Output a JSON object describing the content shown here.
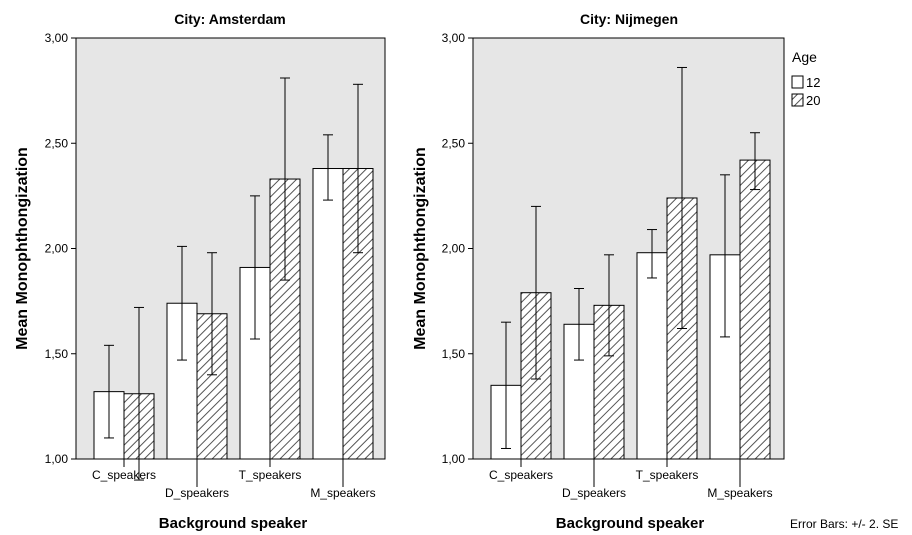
{
  "colors": {
    "plot_bg": "#e6e6e6",
    "bar_fill": "#ffffff",
    "hatch": "#555555",
    "line": "#000000"
  },
  "legend": {
    "title": "Age",
    "items": [
      {
        "label": "12",
        "pattern": "plain"
      },
      {
        "label": "20",
        "pattern": "hatched"
      }
    ],
    "placement": "right of second panel"
  },
  "footnote": "Error Bars: +/- 2. SE",
  "chart_data": [
    {
      "type": "bar",
      "title": "City: Amsterdam",
      "xlabel": "Background speaker",
      "ylabel": "Mean Monophthongization",
      "ylim": [
        1.0,
        3.0
      ],
      "yticks": [
        "1,00",
        "1,50",
        "2,00",
        "2,50",
        "3,00"
      ],
      "ytick_values": [
        1.0,
        1.5,
        2.0,
        2.5,
        3.0
      ],
      "categories": [
        "C_speakers",
        "D_speakers",
        "T_speakers",
        "M_speakers"
      ],
      "series": [
        {
          "name": "12",
          "values": [
            1.32,
            1.74,
            1.91,
            2.38
          ],
          "err_low": [
            1.1,
            1.47,
            1.57,
            2.23
          ],
          "err_high": [
            1.54,
            2.01,
            2.25,
            2.54
          ]
        },
        {
          "name": "20",
          "values": [
            1.31,
            1.69,
            2.33,
            2.38
          ],
          "err_low": [
            0.9,
            1.4,
            1.85,
            1.98
          ],
          "err_high": [
            1.72,
            1.98,
            2.81,
            2.78
          ]
        }
      ]
    },
    {
      "type": "bar",
      "title": "City: Nijmegen",
      "xlabel": "Background speaker",
      "ylabel": "Mean Monophthongization",
      "ylim": [
        1.0,
        3.0
      ],
      "yticks": [
        "1,00",
        "1,50",
        "2,00",
        "2,50",
        "3,00"
      ],
      "ytick_values": [
        1.0,
        1.5,
        2.0,
        2.5,
        3.0
      ],
      "categories": [
        "C_speakers",
        "D_speakers",
        "T_speakers",
        "M_speakers"
      ],
      "series": [
        {
          "name": "12",
          "values": [
            1.35,
            1.64,
            1.98,
            1.97
          ],
          "err_low": [
            1.05,
            1.47,
            1.86,
            1.58
          ],
          "err_high": [
            1.65,
            1.81,
            2.09,
            2.35
          ]
        },
        {
          "name": "20",
          "values": [
            1.79,
            1.73,
            2.24,
            2.42
          ],
          "err_low": [
            1.38,
            1.49,
            1.62,
            2.28
          ],
          "err_high": [
            2.2,
            1.97,
            2.86,
            2.55
          ]
        }
      ]
    }
  ]
}
